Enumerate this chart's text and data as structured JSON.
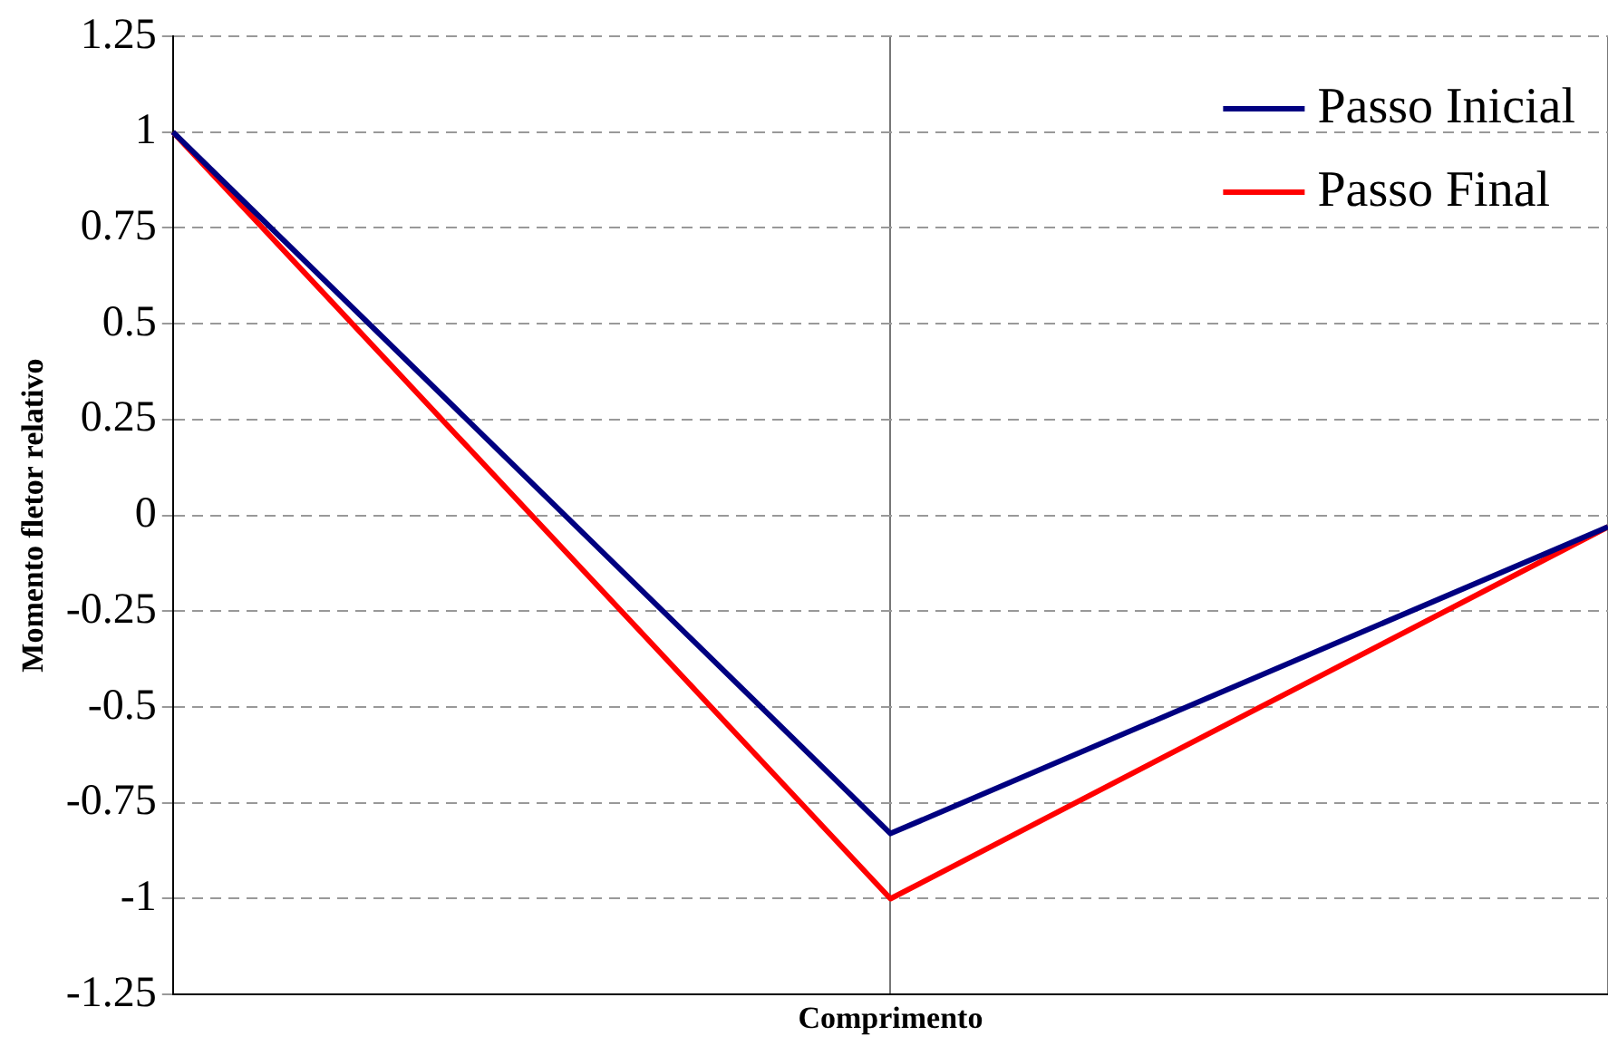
{
  "chart_data": {
    "type": "line",
    "xlabel": "Comprimento",
    "ylabel": "Momento fletor relativo",
    "categories": [
      null,
      null,
      null
    ],
    "series": [
      {
        "name": "Passo Inicial",
        "color": "#000080",
        "values": [
          1,
          -0.83,
          -0.03
        ]
      },
      {
        "name": "Passo Final",
        "color": "#ff0000",
        "values": [
          1,
          -1,
          -0.03
        ]
      }
    ],
    "ylim": [
      -1.25,
      1.25
    ],
    "yticks": [
      {
        "value": -1.25,
        "label": "-1.25"
      },
      {
        "value": -1,
        "label": "-1"
      },
      {
        "value": -0.75,
        "label": "-0.75"
      },
      {
        "value": -0.5,
        "label": "-0.5"
      },
      {
        "value": -0.25,
        "label": "-0.25"
      },
      0,
      0.25,
      0.5,
      0.75,
      1,
      1.25
    ],
    "tick_labels": "y",
    "grid": true,
    "legend": "top right",
    "marker": "none",
    "line_style": "solid"
  }
}
